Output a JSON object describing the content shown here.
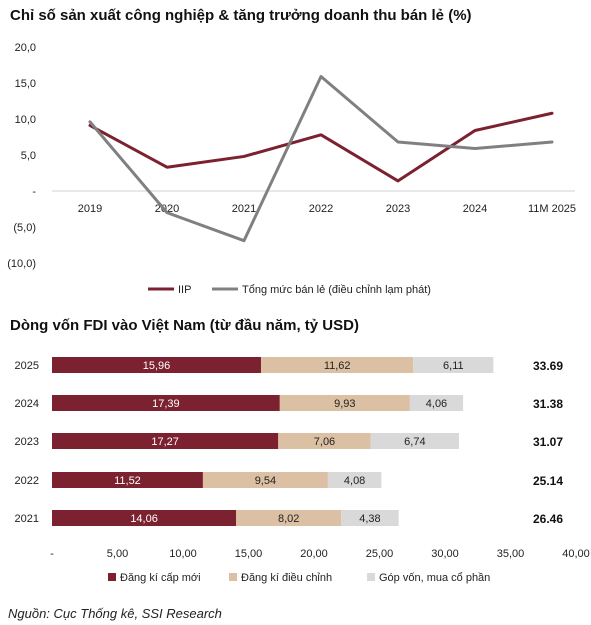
{
  "chart_data": [
    {
      "type": "line",
      "title": "Chỉ số sản xuất công nghiệp & tăng trưởng doanh thu bán lẻ (%)",
      "categories": [
        "2019",
        "2020",
        "2021",
        "2022",
        "2023",
        "2024",
        "11M 2025"
      ],
      "series": [
        {
          "name": "IIP",
          "values": [
            9.1,
            3.3,
            4.8,
            7.8,
            1.4,
            8.4,
            10.8
          ],
          "color": "#7b2130"
        },
        {
          "name": "Tổng mức bán lẻ (điều chỉnh lạm phát)",
          "values": [
            9.6,
            -3.0,
            -6.9,
            15.9,
            6.8,
            5.9,
            6.8
          ],
          "color": "#808080"
        }
      ],
      "y_ticks": [
        "20,0",
        "15,0",
        "10,0",
        "5,0",
        "-",
        "(5,0)",
        "(10,0)"
      ],
      "ylim": [
        -10,
        20
      ],
      "grid": false,
      "legend_position": "bottom"
    },
    {
      "type": "bar",
      "orientation": "horizontal",
      "stacked": true,
      "title": "Dòng vốn FDI vào Việt Nam (từ đầu năm, tỷ USD)",
      "categories": [
        "2025",
        "2024",
        "2023",
        "2022",
        "2021"
      ],
      "series": [
        {
          "name": "Đăng kí cấp mới",
          "values": [
            15.96,
            17.39,
            17.27,
            11.52,
            14.06
          ],
          "labels": [
            "15,96",
            "17,39",
            "17,27",
            "11,52",
            "14,06"
          ],
          "color": "#7b2130"
        },
        {
          "name": "Đăng kí điều chỉnh",
          "values": [
            11.62,
            9.93,
            7.06,
            9.54,
            8.02
          ],
          "labels": [
            "11,62",
            "9,93",
            "7,06",
            "9,54",
            "8,02"
          ],
          "color": "#dcc0a3"
        },
        {
          "name": "Góp vốn, mua cổ phần",
          "values": [
            6.11,
            4.06,
            6.74,
            4.08,
            4.38
          ],
          "labels": [
            "6,11",
            "4,06",
            "6,74",
            "4,08",
            "4,38"
          ],
          "color": "#d9d9d9"
        }
      ],
      "totals": [
        "33.69",
        "31.38",
        "31.07",
        "25.14",
        "26.46"
      ],
      "x_ticks": [
        "-",
        "5,00",
        "10,00",
        "15,00",
        "20,00",
        "25,00",
        "30,00",
        "35,00",
        "40,00"
      ],
      "xlim": [
        0,
        40
      ],
      "legend_position": "bottom"
    }
  ],
  "source": "Nguồn: Cục Thống kê, SSI Research"
}
